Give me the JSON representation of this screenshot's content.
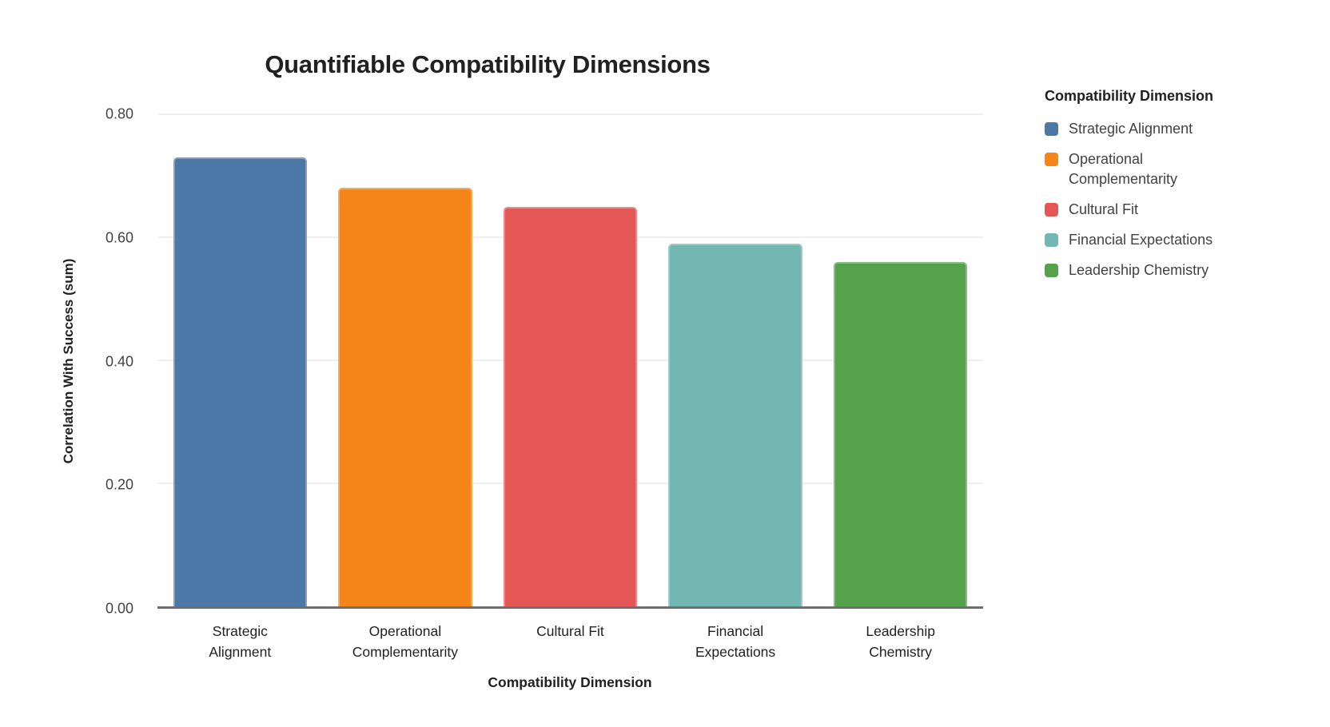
{
  "chart_data": {
    "type": "bar",
    "title": "Quantifiable Compatibility Dimensions",
    "xlabel": "Compatibility Dimension",
    "ylabel": "Correlation With Success (sum)",
    "categories": [
      "Strategic Alignment",
      "Operational Complementarity",
      "Cultural Fit",
      "Financial Expectations",
      "Leadership Chemistry"
    ],
    "x_tick_labels": [
      "Strategic\nAlignment",
      "Operational\nComplementarity",
      "Cultural Fit",
      "Financial\nExpectations",
      "Leadership\nChemistry"
    ],
    "values": [
      0.73,
      0.68,
      0.65,
      0.59,
      0.56
    ],
    "bar_colors": [
      "#4C78A8",
      "#F58518",
      "#E45756",
      "#72B7B2",
      "#54A24B"
    ],
    "ylim": [
      0,
      0.8
    ],
    "ytick_values": [
      0,
      0.2,
      0.4,
      0.6,
      0.8
    ],
    "ytick_labels": [
      "0.00",
      "0.20",
      "0.40",
      "0.60",
      "0.80"
    ],
    "grid": "horizontal-light",
    "legend_position": "right",
    "legend": {
      "title": "Compatibility Dimension",
      "entries": [
        {
          "label": "Strategic Alignment",
          "color": "#4C78A8"
        },
        {
          "label": "Operational Complementarity",
          "color": "#F58518"
        },
        {
          "label": "Cultural Fit",
          "color": "#E45756"
        },
        {
          "label": "Financial Expectations",
          "color": "#72B7B2"
        },
        {
          "label": "Leadership Chemistry",
          "color": "#54A24B"
        }
      ]
    },
    "style_colors": {
      "axis_line": "#6E6E6E",
      "gridline": "#EFEFEF",
      "title_text": "#212121",
      "tick_text": "#424242",
      "background": "#FFFFFF"
    }
  }
}
